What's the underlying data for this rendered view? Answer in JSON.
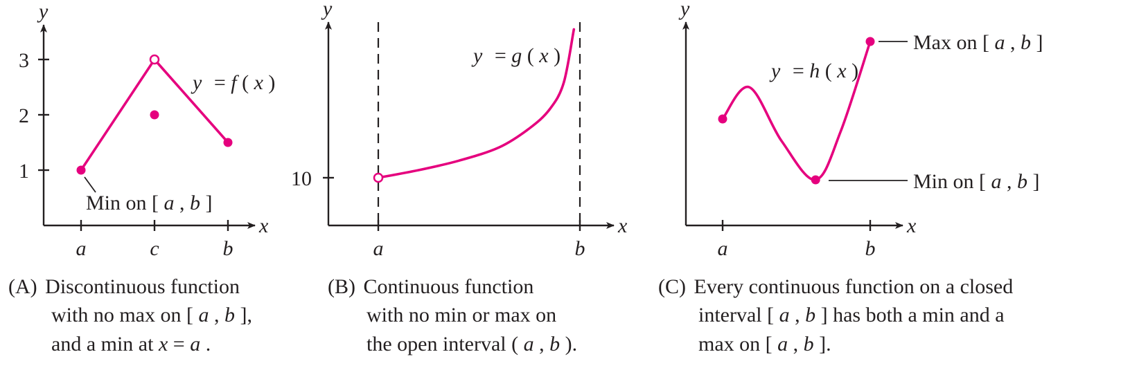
{
  "colors": {
    "curve": "#e5007e",
    "axis": "#231f20",
    "background": "#ffffff"
  },
  "chart_data": [
    {
      "type": "line",
      "panel": "A",
      "xlabel": "x",
      "ylabel": "y",
      "x_ticks": [
        "a",
        "c",
        "b"
      ],
      "y_ticks": [
        1,
        2,
        3
      ],
      "ylim": [
        0,
        3.5
      ],
      "series": [
        {
          "name": "y = f(x)",
          "points": [
            {
              "x": "a",
              "y": 1,
              "marker": "closed"
            },
            {
              "x": "c",
              "y": 3,
              "marker": "open"
            },
            {
              "x": "b",
              "y": 1.5,
              "marker": "closed"
            }
          ]
        }
      ],
      "isolated_points": [
        {
          "x": "c",
          "y": 2,
          "marker": "closed"
        }
      ],
      "curve_label": {
        "pre": "y",
        "eq": "= ",
        "fn": "f",
        "arg": "(",
        "argv": "x",
        "close": ")"
      },
      "annotations": [
        {
          "at": "min",
          "text": "Min on [",
          "a": "a",
          "sep": ", ",
          "b": "b",
          "end": "]"
        }
      ],
      "caption": {
        "tag": "(A)",
        "line1": "Discontinuous function",
        "line2_pre": "with no max on [",
        "line2_a": "a",
        "line2_sep": ", ",
        "line2_b": "b",
        "line2_end": "],",
        "line3_pre": "and a min at ",
        "line3_x": "x",
        "line3_eq": " = ",
        "line3_a": "a",
        "line3_end": "."
      }
    },
    {
      "type": "line",
      "panel": "B",
      "xlabel": "x",
      "ylabel": "y",
      "x_ticks": [
        "a",
        "b"
      ],
      "y_ticks": [
        10
      ],
      "series": [
        {
          "name": "y = g(x)",
          "points": [
            {
              "x": 0.0,
              "y": 10.0
            },
            {
              "x": 0.2,
              "y": 10.4
            },
            {
              "x": 0.4,
              "y": 10.9
            },
            {
              "x": 0.6,
              "y": 11.6
            },
            {
              "x": 0.75,
              "y": 12.6
            },
            {
              "x": 0.85,
              "y": 13.6
            },
            {
              "x": 0.92,
              "y": 15.0
            },
            {
              "x": 0.97,
              "y": 17.8
            }
          ],
          "start_marker": "open"
        }
      ],
      "asymptotes": [
        "a",
        "b"
      ],
      "curve_label": {
        "pre": "y",
        "eq": "= ",
        "fn": "g",
        "arg": "(",
        "argv": "x",
        "close": ")"
      },
      "caption": {
        "tag": "(B)",
        "line1": "Continuous function",
        "line2": "with no min or max on",
        "line3_pre": "the open interval (",
        "line3_a": "a",
        "line3_sep": ", ",
        "line3_b": "b",
        "line3_end": ")."
      }
    },
    {
      "type": "line",
      "panel": "C",
      "xlabel": "x",
      "ylabel": "y",
      "x_ticks": [
        "a",
        "b"
      ],
      "series": [
        {
          "name": "y = h(x)",
          "points": [
            {
              "x": 0.0,
              "y": 0.44
            },
            {
              "x": 0.18,
              "y": 0.67
            },
            {
              "x": 0.4,
              "y": 0.28
            },
            {
              "x": 0.63,
              "y": 0.0
            },
            {
              "x": 0.8,
              "y": 0.35
            },
            {
              "x": 1.0,
              "y": 1.0
            }
          ],
          "end_markers": "closed"
        }
      ],
      "curve_label": {
        "pre": "y",
        "eq": "= ",
        "fn": "h",
        "arg": "(",
        "argv": "x",
        "close": ")"
      },
      "annotations": [
        {
          "at": "max",
          "text": "Max on [",
          "a": "a",
          "sep": ", ",
          "b": "b",
          "end": "]"
        },
        {
          "at": "min",
          "text": "Min on [",
          "a": "a",
          "sep": ", ",
          "b": "b",
          "end": "]"
        }
      ],
      "caption": {
        "tag": "(C)",
        "line1": "Every continuous function on a closed",
        "line2_pre": "interval [",
        "line2_a": "a",
        "line2_sep": ", ",
        "line2_b": "b",
        "line2_end": "] has both a min and a",
        "line3_pre": "max on [",
        "line3_a": "a",
        "line3_sep": ", ",
        "line3_b": "b",
        "line3_end": "]."
      }
    }
  ]
}
